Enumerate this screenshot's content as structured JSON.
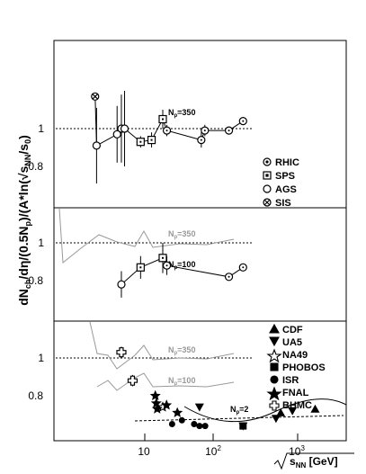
{
  "chart_data": [
    {
      "type": "scatter",
      "panel": "top",
      "xlabel": "√s_NN [GeV]",
      "ylabel": "dN_ch/dη/(0.5N_p)/(A*ln(√s_NN/s_0))",
      "y_ticks": [
        "0.8",
        "1"
      ],
      "x_scale": "log",
      "annotations": [
        {
          "text": "N_p=350"
        }
      ],
      "legend": [
        "RHIC",
        "SPS",
        "AGS",
        "SIS"
      ],
      "legend_placement": "right",
      "reference_line": 1.0,
      "series": [
        {
          "name": "SIS",
          "marker": "circle-x",
          "points": [
            [
              2.2,
              1.17
            ]
          ]
        },
        {
          "name": "AGS",
          "marker": "open-circle",
          "points": [
            [
              2.3,
              0.91
            ],
            [
              4.3,
              0.97
            ],
            [
              4.9,
              1.0
            ],
            [
              5.4,
              1.0
            ]
          ],
          "err": [
            0.2,
            0.15,
            0.18,
            0.2
          ]
        },
        {
          "name": "SPS",
          "marker": "open-square",
          "points": [
            [
              8.8,
              0.93
            ],
            [
              12.3,
              0.94
            ],
            [
              17.3,
              1.05
            ]
          ],
          "err": [
            0.03,
            0.04,
            0.05
          ]
        },
        {
          "name": "RHIC",
          "marker": "circle-dot",
          "points": [
            [
              19.6,
              0.99
            ],
            [
              56,
              0.94
            ],
            [
              62.4,
              0.99
            ],
            [
              130,
              0.99
            ],
            [
              200,
              1.04
            ]
          ],
          "err": [
            0.03,
            0.04,
            0.03,
            0.02,
            0.02
          ]
        }
      ]
    },
    {
      "type": "scatter",
      "panel": "middle",
      "y_ticks": [
        "0.8",
        "1"
      ],
      "annotations": [
        {
          "text": "N_p=350"
        },
        {
          "text": "N_p=100"
        }
      ],
      "reference_line": 1.0,
      "series": [
        {
          "name": "AGS",
          "marker": "open-circle",
          "points": [
            [
              4.9,
              0.78
            ]
          ],
          "err": [
            0.07
          ]
        },
        {
          "name": "SPS",
          "marker": "open-square",
          "points": [
            [
              8.8,
              0.87
            ],
            [
              17.3,
              0.92
            ]
          ],
          "err": [
            0.06,
            0.08
          ]
        },
        {
          "name": "RHIC",
          "marker": "circle-dot",
          "points": [
            [
              19.6,
              0.88
            ],
            [
              130,
              0.82
            ],
            [
              200,
              0.87
            ]
          ],
          "err": [
            0.05,
            0.02,
            0.02
          ]
        }
      ]
    },
    {
      "type": "scatter",
      "panel": "bottom",
      "y_ticks": [
        "0.8",
        "1"
      ],
      "x_ticks": [
        "10",
        "10²",
        "10³"
      ],
      "annotations": [
        {
          "text": "N_p=350"
        },
        {
          "text": "N_p=100"
        },
        {
          "text": "N_p=2"
        }
      ],
      "legend": [
        "CDF",
        "UA5",
        "NA49",
        "PHOBOS",
        "ISR",
        "FNAL",
        "BHMC"
      ],
      "legend_placement": "right",
      "reference_line": 1.0,
      "series": [
        {
          "name": "CDF",
          "marker": "filled-triangle-up",
          "points": [
            [
              630,
              0.71
            ],
            [
              1800,
              0.73
            ]
          ]
        },
        {
          "name": "UA5",
          "marker": "filled-triangle-down",
          "points": [
            [
              53,
              0.74
            ],
            [
              200,
              0.64
            ],
            [
              546,
              0.68
            ],
            [
              900,
              0.72
            ]
          ]
        },
        {
          "name": "NA49",
          "marker": "open-star",
          "points": [
            [
              17.3,
              0.74
            ]
          ]
        },
        {
          "name": "PHOBOS",
          "marker": "filled-square",
          "points": [
            [
              200,
              0.64
            ]
          ]
        },
        {
          "name": "ISR",
          "marker": "filled-circle",
          "points": [
            [
              23,
              0.65
            ],
            [
              31,
              0.67
            ],
            [
              45,
              0.65
            ],
            [
              53,
              0.64
            ],
            [
              63,
              0.64
            ]
          ]
        },
        {
          "name": "FNAL",
          "marker": "filled-star",
          "points": [
            [
              13.8,
              0.8
            ],
            [
              14.2,
              0.76
            ],
            [
              14.6,
              0.73
            ],
            [
              19.4,
              0.75
            ],
            [
              27,
              0.71
            ]
          ]
        },
        {
          "name": "BHMC",
          "marker": "open-cross",
          "points": [
            [
              4.9,
              1.03
            ],
            [
              6.9,
              0.88
            ]
          ],
          "err": [
            0.03,
            0.03
          ]
        }
      ]
    }
  ]
}
